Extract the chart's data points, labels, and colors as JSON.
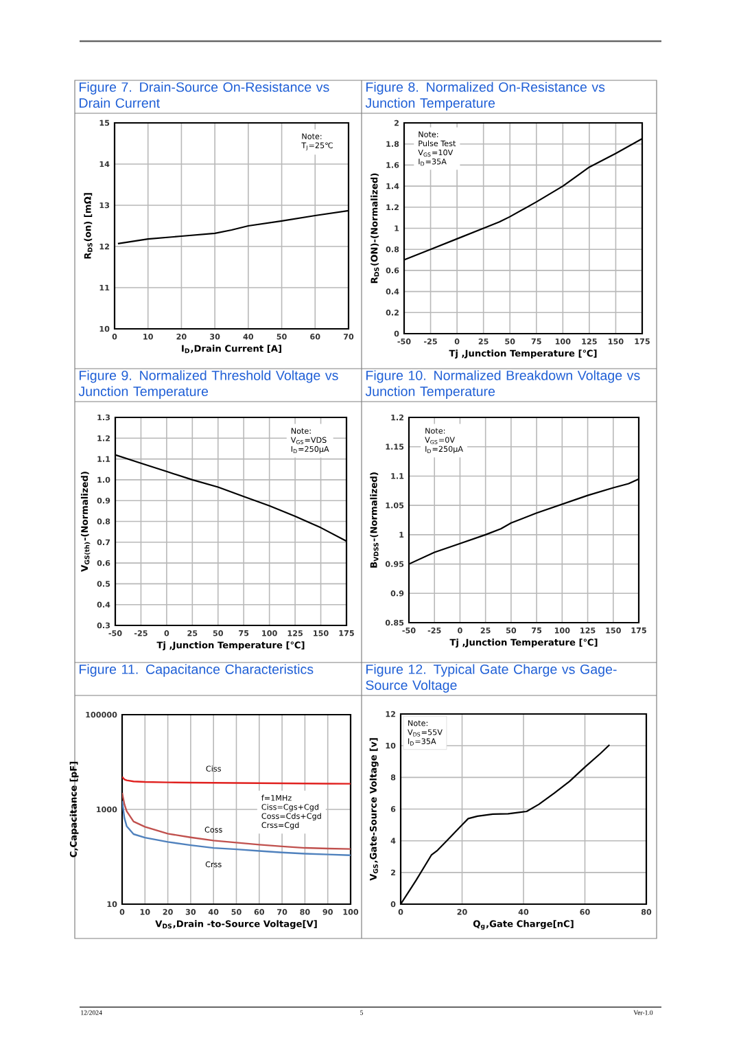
{
  "chart_data": [
    {
      "type": "line",
      "title": "Figure 7. Drain-Source On-Resistance vs Drain Current",
      "xlabel": "I$_{D}$,Drain Current [A]",
      "ylabel": "R$_{DS}$(on) [mΩ]",
      "x": [
        1,
        10,
        20,
        30,
        35,
        40,
        50,
        60,
        70
      ],
      "values": [
        12.07,
        12.18,
        12.25,
        12.32,
        12.4,
        12.5,
        12.62,
        12.75,
        12.87
      ],
      "color": "#000000",
      "xlim": [
        0,
        70
      ],
      "ylim": [
        10,
        15
      ],
      "xticks": [
        0,
        10,
        20,
        30,
        40,
        50,
        60,
        70
      ],
      "yticks": [
        10,
        11,
        12,
        13,
        14,
        15
      ],
      "grid": true,
      "annotations": [
        "Note:",
        "T$_{J}$=25℃"
      ]
    },
    {
      "type": "line",
      "title": "Figure 8. Normalized On-Resistance vs Junction Temperature",
      "xlabel": "Tj ,Junction Temperature [℃]",
      "ylabel": "R$_{DS}$(ON)-(Normalized)",
      "x": [
        -50,
        -25,
        0,
        25,
        40,
        50,
        75,
        100,
        125,
        150,
        175
      ],
      "values": [
        0.7,
        0.8,
        0.9,
        1.0,
        1.06,
        1.11,
        1.25,
        1.4,
        1.58,
        1.71,
        1.85
      ],
      "color": "#000000",
      "xlim": [
        -50,
        175
      ],
      "ylim": [
        0,
        2
      ],
      "xticks": [
        -50,
        -25,
        0,
        25,
        50,
        75,
        100,
        125,
        150,
        175
      ],
      "yticks": [
        0,
        0.2,
        0.4,
        0.6,
        0.8,
        1,
        1.2,
        1.4,
        1.6,
        1.8,
        2
      ],
      "grid": true,
      "annotations": [
        "Note:",
        "Pulse Test",
        "V$_{GS}$=10V",
        "I$_{D}$=35A"
      ]
    },
    {
      "type": "line",
      "title": "Figure 9. Normalized Threshold Voltage vs Junction Temperature",
      "xlabel": "Tj ,Junction Temperature [℃]",
      "ylabel": "V$_{GS(th)}$-(Normalized)",
      "x": [
        -50,
        -25,
        0,
        25,
        50,
        75,
        100,
        125,
        150,
        175
      ],
      "values": [
        1.12,
        1.08,
        1.04,
        1.0,
        0.965,
        0.92,
        0.875,
        0.825,
        0.77,
        0.705
      ],
      "color": "#000000",
      "xlim": [
        -50,
        175
      ],
      "ylim": [
        0.3,
        1.3
      ],
      "xticks": [
        -50,
        -25,
        0,
        25,
        50,
        75,
        100,
        125,
        150,
        175
      ],
      "yticks": [
        0.3,
        0.4,
        0.5,
        0.6,
        0.7,
        0.8,
        0.9,
        {
          "value": 1.0,
          "label": "1.0"
        },
        1.1,
        1.2,
        1.3
      ],
      "grid": true,
      "annotations": [
        "Note:",
        "V$_{GS}$=VDS",
        "I$_{D}$=250μA"
      ]
    },
    {
      "type": "line",
      "title": "Figure 10. Normalized Breakdown Voltage vs Junction Temperature",
      "xlabel": "Tj ,Junction Temperature [℃]",
      "ylabel": "B$_{VDSS}$-(Normalized)",
      "x": [
        -50,
        -25,
        0,
        25,
        40,
        50,
        75,
        100,
        125,
        150,
        165,
        175
      ],
      "values": [
        0.95,
        0.97,
        0.985,
        1.0,
        1.01,
        1.02,
        1.037,
        1.052,
        1.067,
        1.08,
        1.087,
        1.095
      ],
      "color": "#000000",
      "xlim": [
        -50,
        175
      ],
      "ylim": [
        0.85,
        1.2
      ],
      "xticks": [
        -50,
        -25,
        0,
        25,
        50,
        75,
        100,
        125,
        150,
        175
      ],
      "yticks": [
        0.85,
        0.9,
        0.95,
        1,
        1.05,
        1.1,
        1.15,
        1.2
      ],
      "grid": true,
      "annotations": [
        "Note:",
        "V$_{GS}$=0V",
        "I$_{D}$=250μA"
      ]
    },
    {
      "type": "line",
      "title": "Figure 11. Capacitance Characteristics",
      "xlabel": "V$_{DS}$,Drain -to-Source Voltage[V]",
      "ylabel": "C,Capacitance [pF]",
      "x": [
        0,
        1,
        2,
        5,
        10,
        20,
        30,
        40,
        50,
        60,
        70,
        80,
        90,
        100
      ],
      "series": [
        {
          "name": "Ciss",
          "color": "#e0201e",
          "values": [
            4860,
            4300,
            4110,
            3900,
            3800,
            3720,
            3680,
            3640,
            3620,
            3590,
            3560,
            3530,
            3500,
            3480
          ]
        },
        {
          "name": "Coss",
          "color": "#c0504d",
          "values": [
            2230,
            1280,
            915,
            555,
            429,
            307,
            257,
            220,
            199,
            180,
            166,
            154,
            149,
            146
          ]
        },
        {
          "name": "Crss",
          "color": "#4f81bd",
          "values": [
            1510,
            655,
            443,
            301,
            254,
            206,
            176,
            154,
            144,
            133,
            123,
            116,
            112,
            108
          ]
        }
      ],
      "xlim": [
        0,
        100
      ],
      "ylim": [
        10,
        100000
      ],
      "xticks": [
        0,
        10,
        20,
        30,
        40,
        50,
        60,
        70,
        80,
        90,
        100
      ],
      "yticks": [
        10,
        1000,
        100000
      ],
      "log": true,
      "grid": true,
      "annotations": [
        "f=1MHz",
        "Ciss=Cgs+Cgd",
        "Coss=Cds+Cgd",
        "Crss=Cgd"
      ]
    },
    {
      "type": "line",
      "title": "Figure 12. Typical Gate Charge vs Gage-Source Voltage",
      "xlabel": "Q$_{g}$,Gate Charge[nC]",
      "ylabel": "V$_{GS}$,Gate-Source Voltage [v]",
      "x": [
        0,
        5,
        10,
        12,
        15,
        20,
        22,
        25,
        30,
        35,
        41,
        45,
        50,
        55,
        60,
        65,
        68
      ],
      "values": [
        0,
        1.5,
        3.1,
        3.4,
        4.0,
        5.0,
        5.4,
        5.55,
        5.68,
        5.7,
        5.85,
        6.3,
        7.0,
        7.75,
        8.65,
        9.5,
        10.05
      ],
      "color": "#000000",
      "xlim": [
        0,
        80
      ],
      "ylim": [
        0,
        12
      ],
      "xticks": [
        0,
        20,
        40,
        60,
        80
      ],
      "yticks": [
        0,
        2,
        4,
        6,
        8,
        10,
        12
      ],
      "grid": true,
      "annotations": [
        "Note:",
        "V$_{DS}$=55V",
        "I$_{D}$=35A",
        "12/2024",
        "5",
        "Ver-1.0"
      ]
    }
  ]
}
